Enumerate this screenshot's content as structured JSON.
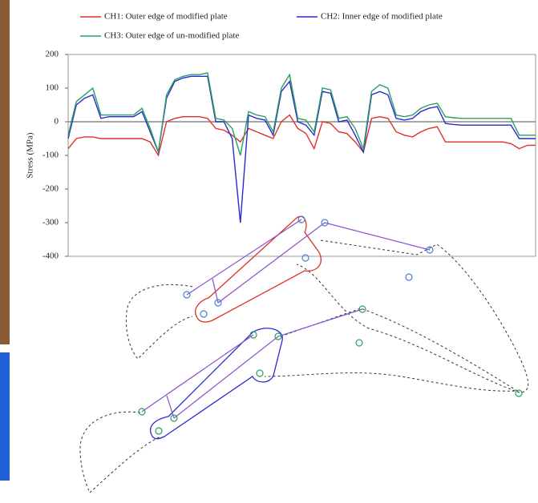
{
  "chart_data": {
    "type": "line",
    "y_label": "Stress (MPa)",
    "ylim": [
      -400,
      200
    ],
    "yticks": [
      -400,
      -300,
      -200,
      -100,
      0,
      100,
      200
    ],
    "series": [
      {
        "name": "CH1: Outer edge of modified plate",
        "color": "#e0302a",
        "values": [
          -80,
          -50,
          -45,
          -45,
          -50,
          -50,
          -50,
          -50,
          -50,
          -50,
          -60,
          -100,
          0,
          10,
          15,
          15,
          15,
          10,
          -20,
          -25,
          -40,
          -60,
          -20,
          -30,
          -40,
          -50,
          0,
          20,
          -20,
          -35,
          -80,
          0,
          -5,
          -30,
          -35,
          -60,
          -90,
          10,
          15,
          10,
          -30,
          -40,
          -45,
          -30,
          -20,
          -15,
          -60,
          -60,
          -60,
          -60,
          -60,
          -60,
          -60,
          -60,
          -65,
          -80,
          -70,
          -70
        ]
      },
      {
        "name": "CH2: Inner edge of modified plate",
        "color": "#2a2ad0",
        "values": [
          -50,
          50,
          70,
          80,
          10,
          15,
          15,
          15,
          15,
          30,
          -30,
          -90,
          70,
          120,
          130,
          135,
          135,
          135,
          0,
          0,
          -50,
          -300,
          20,
          10,
          5,
          -40,
          90,
          120,
          0,
          -10,
          -40,
          90,
          85,
          0,
          5,
          -40,
          -90,
          80,
          90,
          80,
          10,
          5,
          10,
          30,
          40,
          45,
          -5,
          -8,
          -10,
          -10,
          -10,
          -10,
          -10,
          -10,
          -10,
          -50,
          -50,
          -50
        ]
      },
      {
        "name": "CH3: Outer edge of un-modified plate",
        "color": "#2aa060",
        "values": [
          -40,
          60,
          80,
          100,
          20,
          20,
          20,
          20,
          20,
          40,
          -20,
          -90,
          80,
          125,
          135,
          140,
          140,
          145,
          10,
          5,
          -20,
          -100,
          30,
          20,
          15,
          -30,
          100,
          140,
          10,
          5,
          -30,
          100,
          95,
          10,
          15,
          -20,
          -80,
          90,
          110,
          100,
          20,
          15,
          20,
          40,
          50,
          55,
          15,
          12,
          10,
          10,
          10,
          10,
          10,
          10,
          10,
          -40,
          -40,
          -40
        ]
      }
    ]
  }
}
